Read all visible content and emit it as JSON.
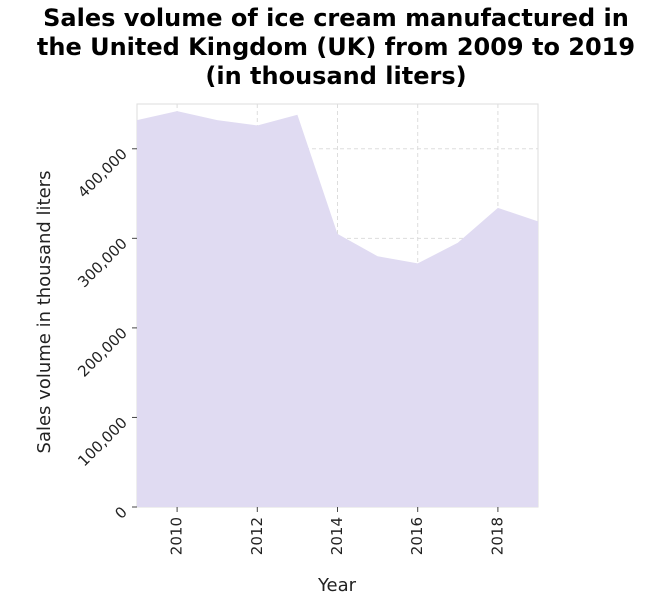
{
  "chart_data": {
    "type": "area",
    "title_lines": [
      "Sales volume of ice cream manufactured in",
      "the United Kingdom (UK) from 2009 to 2019",
      "(in thousand liters)"
    ],
    "xlabel": "Year",
    "ylabel": "Sales volume in thousand liters",
    "x": [
      2009,
      2010,
      2011,
      2012,
      2013,
      2014,
      2015,
      2016,
      2017,
      2018,
      2019
    ],
    "series": [
      {
        "values": [
          432000,
          442000,
          432000,
          426000,
          438000,
          305000,
          280000,
          272000,
          295000,
          334000,
          319000
        ]
      }
    ],
    "xlim": [
      2009,
      2019
    ],
    "ylim": [
      0,
      450000
    ],
    "x_ticks": [
      "2010",
      "2012",
      "2014",
      "2016",
      "2018"
    ],
    "y_ticks": [
      "0",
      "100,000",
      "200,000",
      "300,000",
      "400,000"
    ],
    "grid": true,
    "fill_color": "#e0dbf2",
    "grid_color": "#dddddd"
  }
}
